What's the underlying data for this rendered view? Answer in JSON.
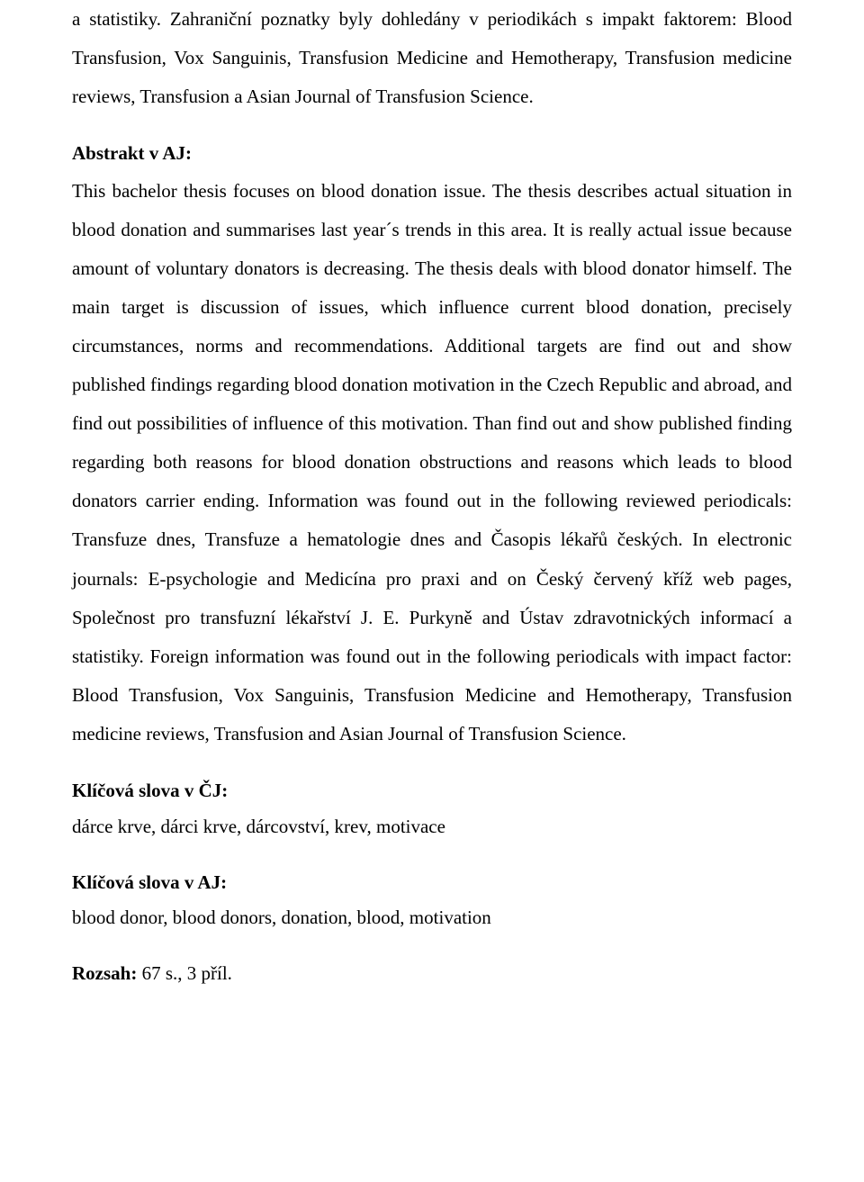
{
  "intro_para": "a statistiky. Zahraniční poznatky byly dohledány v periodikách s impakt faktorem: Blood Transfusion, Vox Sanguinis, Transfusion Medicine and Hemotherapy, Transfusion medicine reviews, Transfusion a Asian Journal of Transfusion Science.",
  "abstract_en": {
    "heading": "Abstrakt v AJ:",
    "body": "This bachelor thesis focuses on blood donation issue. The thesis describes actual situation in blood donation and summarises last year´s trends in this area. It is really actual issue because amount of voluntary donators is decreasing. The thesis deals with blood donator himself. The main target is discussion of issues, which influence current blood donation, precisely circumstances, norms and recommendations. Additional targets are find out and show published findings regarding blood donation motivation in the Czech Republic and abroad, and find out possibilities of influence of this motivation. Than find out and show published finding regarding both reasons for blood donation obstructions and reasons which leads to blood donators carrier ending. Information was found out in the following reviewed periodicals: Transfuze dnes, Transfuze a hematologie dnes and Časopis lékařů českých. In electronic journals: E-psychologie and Medicína pro praxi and on Český červený kříž web pages, Společnost pro transfuzní lékařství J. E. Purkyně and Ústav zdravotnických informací a statistiky. Foreign information was found out in the following periodicals with impact factor: Blood Transfusion, Vox Sanguinis, Transfusion Medicine and Hemotherapy, Transfusion medicine reviews, Transfusion and Asian Journal of Transfusion Science."
  },
  "keywords_cz": {
    "heading": "Klíčová slova v ČJ:",
    "body": "dárce krve, dárci krve, dárcovství, krev, motivace"
  },
  "keywords_en": {
    "heading": "Klíčová slova v AJ:",
    "body": "blood donor, blood donors, donation, blood, motivation"
  },
  "extent": {
    "label": "Rozsah: ",
    "value": "67 s., 3 příl."
  }
}
